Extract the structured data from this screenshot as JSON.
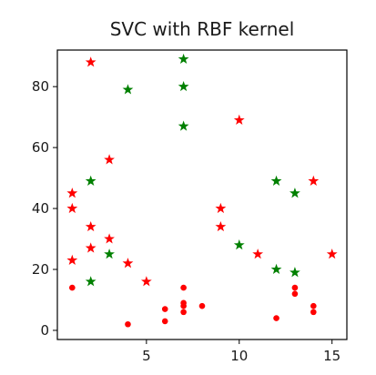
{
  "chart_data": {
    "type": "scatter",
    "title": "SVC with RBF kernel",
    "xlabel": "",
    "ylabel": "",
    "xlim": [
      0.2,
      15.8
    ],
    "ylim": [
      -3,
      92
    ],
    "x_ticks": [
      5,
      10,
      15
    ],
    "y_ticks": [
      0,
      20,
      40,
      60,
      80
    ],
    "grid": false,
    "legend": "none",
    "series": [
      {
        "color": "#008000",
        "marker": "star",
        "points": [
          {
            "x": 7,
            "y": 89
          },
          {
            "x": 7,
            "y": 80
          },
          {
            "x": 4,
            "y": 79
          },
          {
            "x": 7,
            "y": 67
          },
          {
            "x": 2,
            "y": 49
          },
          {
            "x": 12,
            "y": 49
          },
          {
            "x": 13,
            "y": 45
          },
          {
            "x": 10,
            "y": 28
          },
          {
            "x": 3,
            "y": 25
          },
          {
            "x": 12,
            "y": 20
          },
          {
            "x": 13,
            "y": 19
          },
          {
            "x": 2,
            "y": 16
          }
        ]
      },
      {
        "color": "#ff0000",
        "marker": "star",
        "points": [
          {
            "x": 2,
            "y": 88
          },
          {
            "x": 10,
            "y": 69
          },
          {
            "x": 3,
            "y": 56
          },
          {
            "x": 14,
            "y": 49
          },
          {
            "x": 1,
            "y": 45
          },
          {
            "x": 1,
            "y": 40
          },
          {
            "x": 9,
            "y": 40
          },
          {
            "x": 2,
            "y": 34
          },
          {
            "x": 9,
            "y": 34
          },
          {
            "x": 3,
            "y": 30
          },
          {
            "x": 2,
            "y": 27
          },
          {
            "x": 11,
            "y": 25
          },
          {
            "x": 15,
            "y": 25
          },
          {
            "x": 1,
            "y": 23
          },
          {
            "x": 4,
            "y": 22
          },
          {
            "x": 5,
            "y": 16
          }
        ]
      },
      {
        "color": "#ff0000",
        "marker": "circle",
        "points": [
          {
            "x": 1,
            "y": 14
          },
          {
            "x": 4,
            "y": 2
          },
          {
            "x": 6,
            "y": 7
          },
          {
            "x": 6,
            "y": 3
          },
          {
            "x": 7,
            "y": 14
          },
          {
            "x": 7,
            "y": 9
          },
          {
            "x": 7,
            "y": 8
          },
          {
            "x": 7,
            "y": 6
          },
          {
            "x": 8,
            "y": 8
          },
          {
            "x": 12,
            "y": 4
          },
          {
            "x": 13,
            "y": 14
          },
          {
            "x": 13,
            "y": 12
          },
          {
            "x": 14,
            "y": 8
          },
          {
            "x": 14,
            "y": 6
          }
        ]
      }
    ]
  }
}
